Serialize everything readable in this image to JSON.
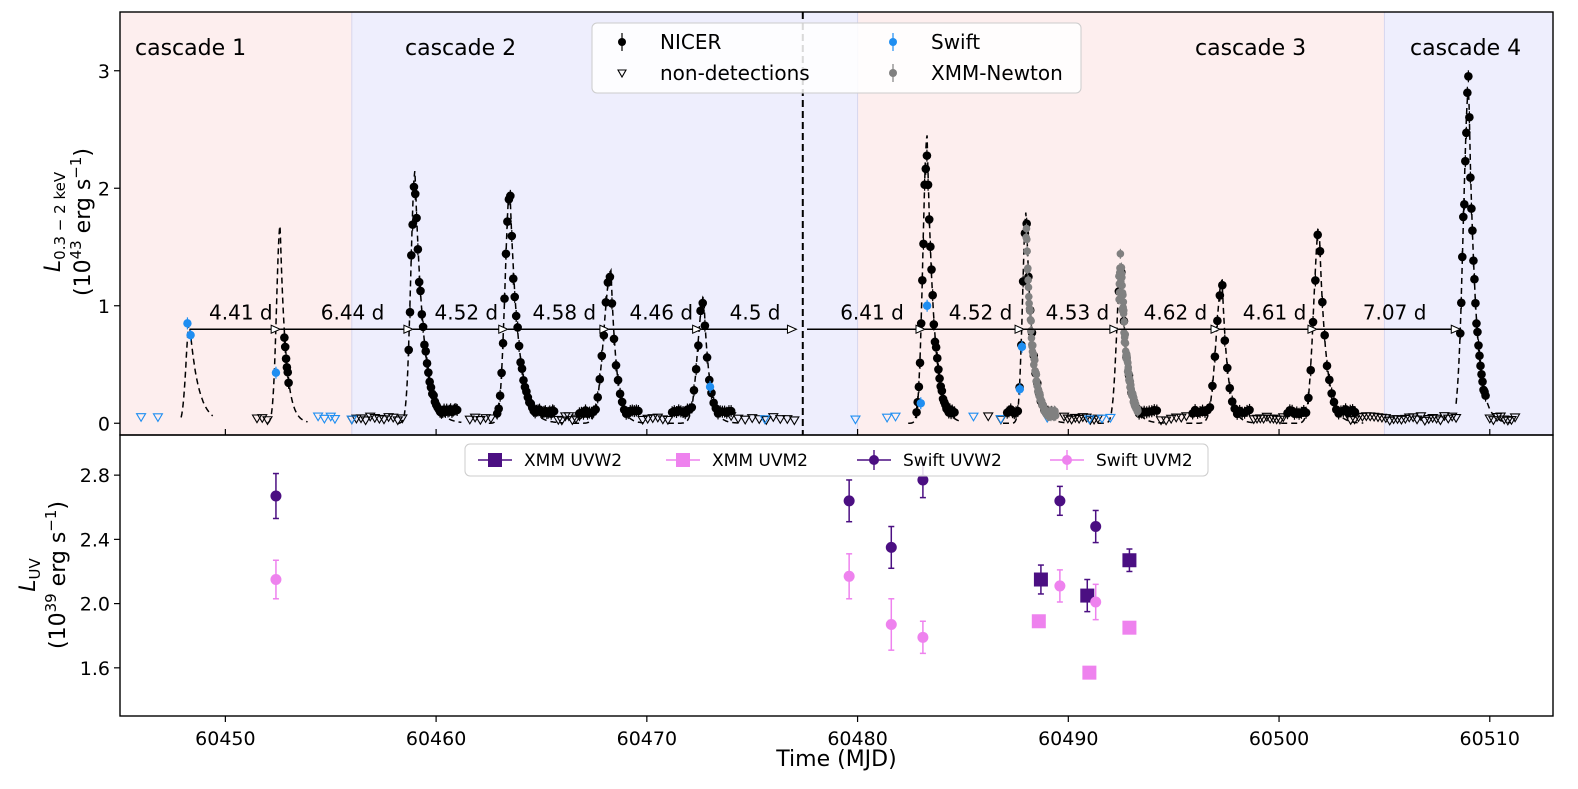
{
  "chart_data": [
    {
      "type": "scatter",
      "panel": "top",
      "ylabel_line1": "L",
      "ylabel_sub": "0.3 − 2 keV",
      "ylabel_line2": "(10",
      "ylabel_sup": "43",
      "ylabel_line2_tail": " erg s",
      "ylabel_sup2": "−1",
      "ylabel_close": ")",
      "xlim": [
        60445,
        60513
      ],
      "ylim": [
        -0.1,
        3.5
      ],
      "yticks": [
        0,
        1,
        2,
        3
      ],
      "ytick_labels": [
        "0",
        "1",
        "2",
        "3"
      ],
      "vline_x": 60477.4,
      "cascades": [
        {
          "label": "cascade 1",
          "x0": 60445,
          "x1": 60456,
          "color": "#fdeeee"
        },
        {
          "label": "cascade 2",
          "x0": 60456,
          "x1": 60480,
          "color": "#eeeefd"
        },
        {
          "label": "cascade 3",
          "x0": 60480,
          "x1": 60505,
          "color": "#fdeeee"
        },
        {
          "label": "cascade 4",
          "x0": 60505,
          "x1": 60513,
          "color": "#eeeefd"
        }
      ],
      "arrow_y": 0.8,
      "intervals": [
        {
          "x0": 60448.3,
          "x1": 60452.6,
          "label": "4.41 d"
        },
        {
          "x0": 60452.6,
          "x1": 60458.9,
          "label": "6.44 d"
        },
        {
          "x0": 60458.9,
          "x1": 60463.4,
          "label": "4.52 d"
        },
        {
          "x0": 60463.4,
          "x1": 60468.2,
          "label": "4.58 d"
        },
        {
          "x0": 60468.2,
          "x1": 60472.6,
          "label": "4.46 d"
        },
        {
          "x0": 60472.6,
          "x1": 60477.1,
          "label": "4.5 d"
        },
        {
          "x0": 60477.6,
          "x1": 60483.2,
          "label": "6.41 d"
        },
        {
          "x0": 60483.2,
          "x1": 60487.9,
          "label": "4.52 d"
        },
        {
          "x0": 60487.9,
          "x1": 60492.4,
          "label": "4.53 d"
        },
        {
          "x0": 60492.4,
          "x1": 60497.2,
          "label": "4.62 d"
        },
        {
          "x0": 60497.2,
          "x1": 60501.8,
          "label": "4.61 d"
        },
        {
          "x0": 60501.8,
          "x1": 60508.6,
          "label": "7.07 d"
        }
      ],
      "flares": [
        {
          "t": 60448.3,
          "peak": 0.85,
          "rise": 0.3,
          "decay": 0.8,
          "start": 60447.9,
          "end": 60449.4,
          "nicer": false
        },
        {
          "t": 60452.6,
          "peak": 1.68,
          "rise": 0.3,
          "decay": 0.5,
          "start": 60452.0,
          "end": 60453.9,
          "nicer": true,
          "ds": 60452.8,
          "de": 60453.0,
          "n": 6
        },
        {
          "t": 60459.0,
          "peak": 2.15,
          "rise": 0.35,
          "decay": 0.75,
          "start": 60458.2,
          "end": 60461.2,
          "nicer": true,
          "ds": 60458.7,
          "de": 60461.0,
          "n": 38
        },
        {
          "t": 60463.5,
          "peak": 2.0,
          "rise": 0.4,
          "decay": 0.75,
          "start": 60462.5,
          "end": 60466.0,
          "nicer": true,
          "ds": 60462.9,
          "de": 60465.6,
          "n": 40
        },
        {
          "t": 60468.3,
          "peak": 1.3,
          "rise": 0.6,
          "decay": 0.5,
          "start": 60466.5,
          "end": 60470.0,
          "nicer": true,
          "ds": 60466.8,
          "de": 60469.6,
          "n": 30
        },
        {
          "t": 60472.7,
          "peak": 1.08,
          "rise": 0.5,
          "decay": 0.5,
          "start": 60471.0,
          "end": 60474.5,
          "nicer": true,
          "ds": 60471.2,
          "de": 60474.0,
          "n": 28
        },
        {
          "t": 60483.3,
          "peak": 2.45,
          "rise": 0.35,
          "decay": 0.6,
          "start": 60482.4,
          "end": 60484.8,
          "nicer": true,
          "ds": 60482.8,
          "de": 60484.6,
          "n": 34
        },
        {
          "t": 60488.0,
          "peak": 1.8,
          "rise": 0.3,
          "decay": 0.6,
          "start": 60486.9,
          "end": 60490.0,
          "nicer": true,
          "ds": 60487.1,
          "de": 60489.2,
          "n": 26
        },
        {
          "t": 60492.5,
          "peak": 1.35,
          "rise": 0.35,
          "decay": 0.6,
          "start": 60491.4,
          "end": 60494.6,
          "nicer": true,
          "ds": 60492.4,
          "de": 60494.2,
          "n": 16
        },
        {
          "t": 60497.3,
          "peak": 1.22,
          "rise": 0.5,
          "decay": 0.5,
          "start": 60495.6,
          "end": 60498.9,
          "nicer": true,
          "ds": 60495.9,
          "de": 60498.6,
          "n": 24
        },
        {
          "t": 60501.9,
          "peak": 1.68,
          "rise": 0.45,
          "decay": 0.6,
          "start": 60500.1,
          "end": 60504.0,
          "nicer": true,
          "ds": 60500.4,
          "de": 60503.6,
          "n": 30
        },
        {
          "t": 60509.0,
          "peak": 2.85,
          "rise": 0.45,
          "decay": 0.6,
          "start": 60508.4,
          "end": 60511.0,
          "nicer": true,
          "ds": 60508.6,
          "de": 60509.8,
          "n": 26
        }
      ],
      "swift_points": [
        {
          "x": 60448.2,
          "y": 0.85
        },
        {
          "x": 60448.35,
          "y": 0.75
        },
        {
          "x": 60452.4,
          "y": 0.43
        },
        {
          "x": 60473.0,
          "y": 0.31
        },
        {
          "x": 60483.0,
          "y": 0.17
        },
        {
          "x": 60483.3,
          "y": 1.0
        },
        {
          "x": 60487.7,
          "y": 0.29
        },
        {
          "x": 60487.8,
          "y": 0.65
        }
      ],
      "xmm_windows": [
        [
          60488.0,
          60489.4
        ],
        [
          60492.4,
          60493.3
        ]
      ],
      "nondet_nicer_ranges": [
        [
          60451.5,
          60452.0,
          3
        ],
        [
          60456.0,
          60458.4,
          12
        ],
        [
          60461.6,
          60462.6,
          5
        ],
        [
          60465.8,
          60466.8,
          7
        ],
        [
          60469.8,
          60471.0,
          6
        ],
        [
          60474.0,
          60477.0,
          10
        ],
        [
          60486.2,
          60486.8,
          2
        ],
        [
          60489.8,
          60491.4,
          10
        ],
        [
          60494.4,
          60495.6,
          6
        ],
        [
          60498.8,
          60500.2,
          10
        ],
        [
          60503.4,
          60508.4,
          28
        ],
        [
          60510.0,
          60511.2,
          8
        ]
      ],
      "nondet_swift": [
        60446.0,
        60446.8,
        60454.4,
        60454.7,
        60455.0,
        60455.2,
        60456.0,
        60475.6,
        60479.9,
        60481.4,
        60481.8,
        60485.5,
        60486.8,
        60489.0,
        60491.0,
        60491.6,
        60492.0
      ],
      "legend": [
        {
          "label": "NICER",
          "marker": "dot-err",
          "color": "#000000"
        },
        {
          "label": "non-detections",
          "marker": "tri-down",
          "color": "#000000"
        },
        {
          "label": "Swift",
          "marker": "dot-err",
          "color": "#1f8ef1"
        },
        {
          "label": "XMM-Newton",
          "marker": "dot-err",
          "color": "#808080"
        }
      ]
    },
    {
      "type": "scatter",
      "panel": "bottom",
      "ylabel_line1": "L",
      "ylabel_sub": "UV",
      "ylabel_line2": "(10",
      "ylabel_sup": "39",
      "ylabel_line2_tail": " erg s",
      "ylabel_sup2": "−1",
      "ylabel_close": ")",
      "xlabel": "Time (MJD)",
      "xlim": [
        60445,
        60513
      ],
      "ylim": [
        1.3,
        3.05
      ],
      "xticks": [
        60450,
        60460,
        60470,
        60480,
        60490,
        60500,
        60510
      ],
      "xtick_labels": [
        "60450",
        "60460",
        "60470",
        "60480",
        "60490",
        "60500",
        "60510"
      ],
      "yticks": [
        1.6,
        2.0,
        2.4,
        2.8
      ],
      "ytick_labels": [
        "1.6",
        "2.0",
        "2.4",
        "2.8"
      ],
      "series": [
        {
          "name": "XMM UVW2",
          "marker": "square",
          "color": "#4b0f82",
          "points": [
            {
              "x": 60488.7,
              "y": 2.15,
              "err": 0.09
            },
            {
              "x": 60490.9,
              "y": 2.05,
              "err": 0.1
            },
            {
              "x": 60492.9,
              "y": 2.27,
              "err": 0.07
            }
          ]
        },
        {
          "name": "XMM UVM2",
          "marker": "square",
          "color": "#ee82ee",
          "points": [
            {
              "x": 60488.6,
              "y": 1.89,
              "err": 0.03
            },
            {
              "x": 60491.0,
              "y": 1.57,
              "err": 0.02
            },
            {
              "x": 60492.9,
              "y": 1.85,
              "err": 0.03
            }
          ]
        },
        {
          "name": "Swift UVW2",
          "marker": "circle",
          "color": "#4b0f82",
          "points": [
            {
              "x": 60452.4,
              "y": 2.67,
              "err": 0.14
            },
            {
              "x": 60479.6,
              "y": 2.64,
              "err": 0.13
            },
            {
              "x": 60481.6,
              "y": 2.35,
              "err": 0.13
            },
            {
              "x": 60483.1,
              "y": 2.77,
              "err": 0.11
            },
            {
              "x": 60489.6,
              "y": 2.64,
              "err": 0.09
            },
            {
              "x": 60491.3,
              "y": 2.48,
              "err": 0.1
            }
          ]
        },
        {
          "name": "Swift UVM2",
          "marker": "circle",
          "color": "#ee82ee",
          "points": [
            {
              "x": 60452.4,
              "y": 2.15,
              "err": 0.12
            },
            {
              "x": 60479.6,
              "y": 2.17,
              "err": 0.14
            },
            {
              "x": 60481.6,
              "y": 1.87,
              "err": 0.16
            },
            {
              "x": 60483.1,
              "y": 1.79,
              "err": 0.1
            },
            {
              "x": 60489.6,
              "y": 2.11,
              "err": 0.1
            },
            {
              "x": 60491.3,
              "y": 2.01,
              "err": 0.11
            }
          ]
        }
      ]
    }
  ]
}
